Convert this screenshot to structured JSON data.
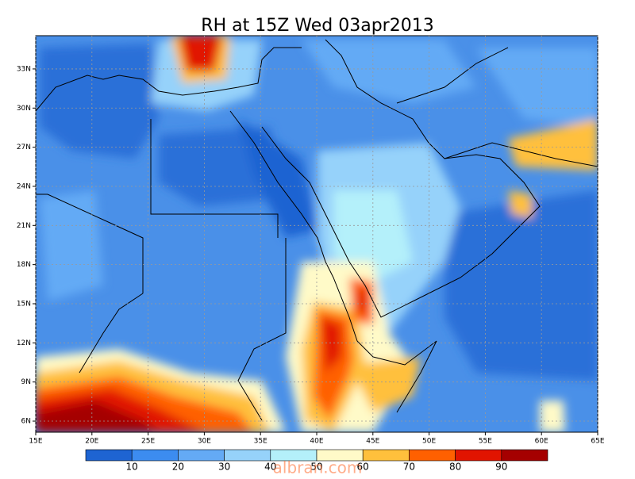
{
  "title": "RH at 15Z Wed 03apr2013",
  "map": {
    "lonlim": [
      15,
      65
    ],
    "latlim": [
      5.15,
      35.55
    ],
    "lonticks": [
      {
        "value": 15,
        "label": "15E"
      },
      {
        "value": 20,
        "label": "20E"
      },
      {
        "value": 25,
        "label": "25E"
      },
      {
        "value": 30,
        "label": "30E"
      },
      {
        "value": 35,
        "label": "35E"
      },
      {
        "value": 40,
        "label": "40E"
      },
      {
        "value": 45,
        "label": "45E"
      },
      {
        "value": 50,
        "label": "50E"
      },
      {
        "value": 55,
        "label": "55E"
      },
      {
        "value": 60,
        "label": "60E"
      },
      {
        "value": 65,
        "label": "65E"
      }
    ],
    "latticks": [
      {
        "value": 6,
        "label": "6N"
      },
      {
        "value": 9,
        "label": "9N"
      },
      {
        "value": 12,
        "label": "12N"
      },
      {
        "value": 15,
        "label": "15N"
      },
      {
        "value": 18,
        "label": "18N"
      },
      {
        "value": 21,
        "label": "21N"
      },
      {
        "value": 24,
        "label": "24N"
      },
      {
        "value": 27,
        "label": "27N"
      },
      {
        "value": 30,
        "label": "30N"
      },
      {
        "value": 33,
        "label": "33N"
      }
    ],
    "grid": true
  },
  "colorbar": {
    "levels": [
      10,
      20,
      30,
      40,
      50,
      60,
      70,
      80,
      90
    ],
    "colors": [
      "#1e64d2",
      "#3c8cf0",
      "#64aaf5",
      "#96d2fa",
      "#b4f0fa",
      "#fffac8",
      "#ffc03c",
      "#ff6000",
      "#e11400",
      "#a50000"
    ]
  },
  "watermark": "albran.com"
}
